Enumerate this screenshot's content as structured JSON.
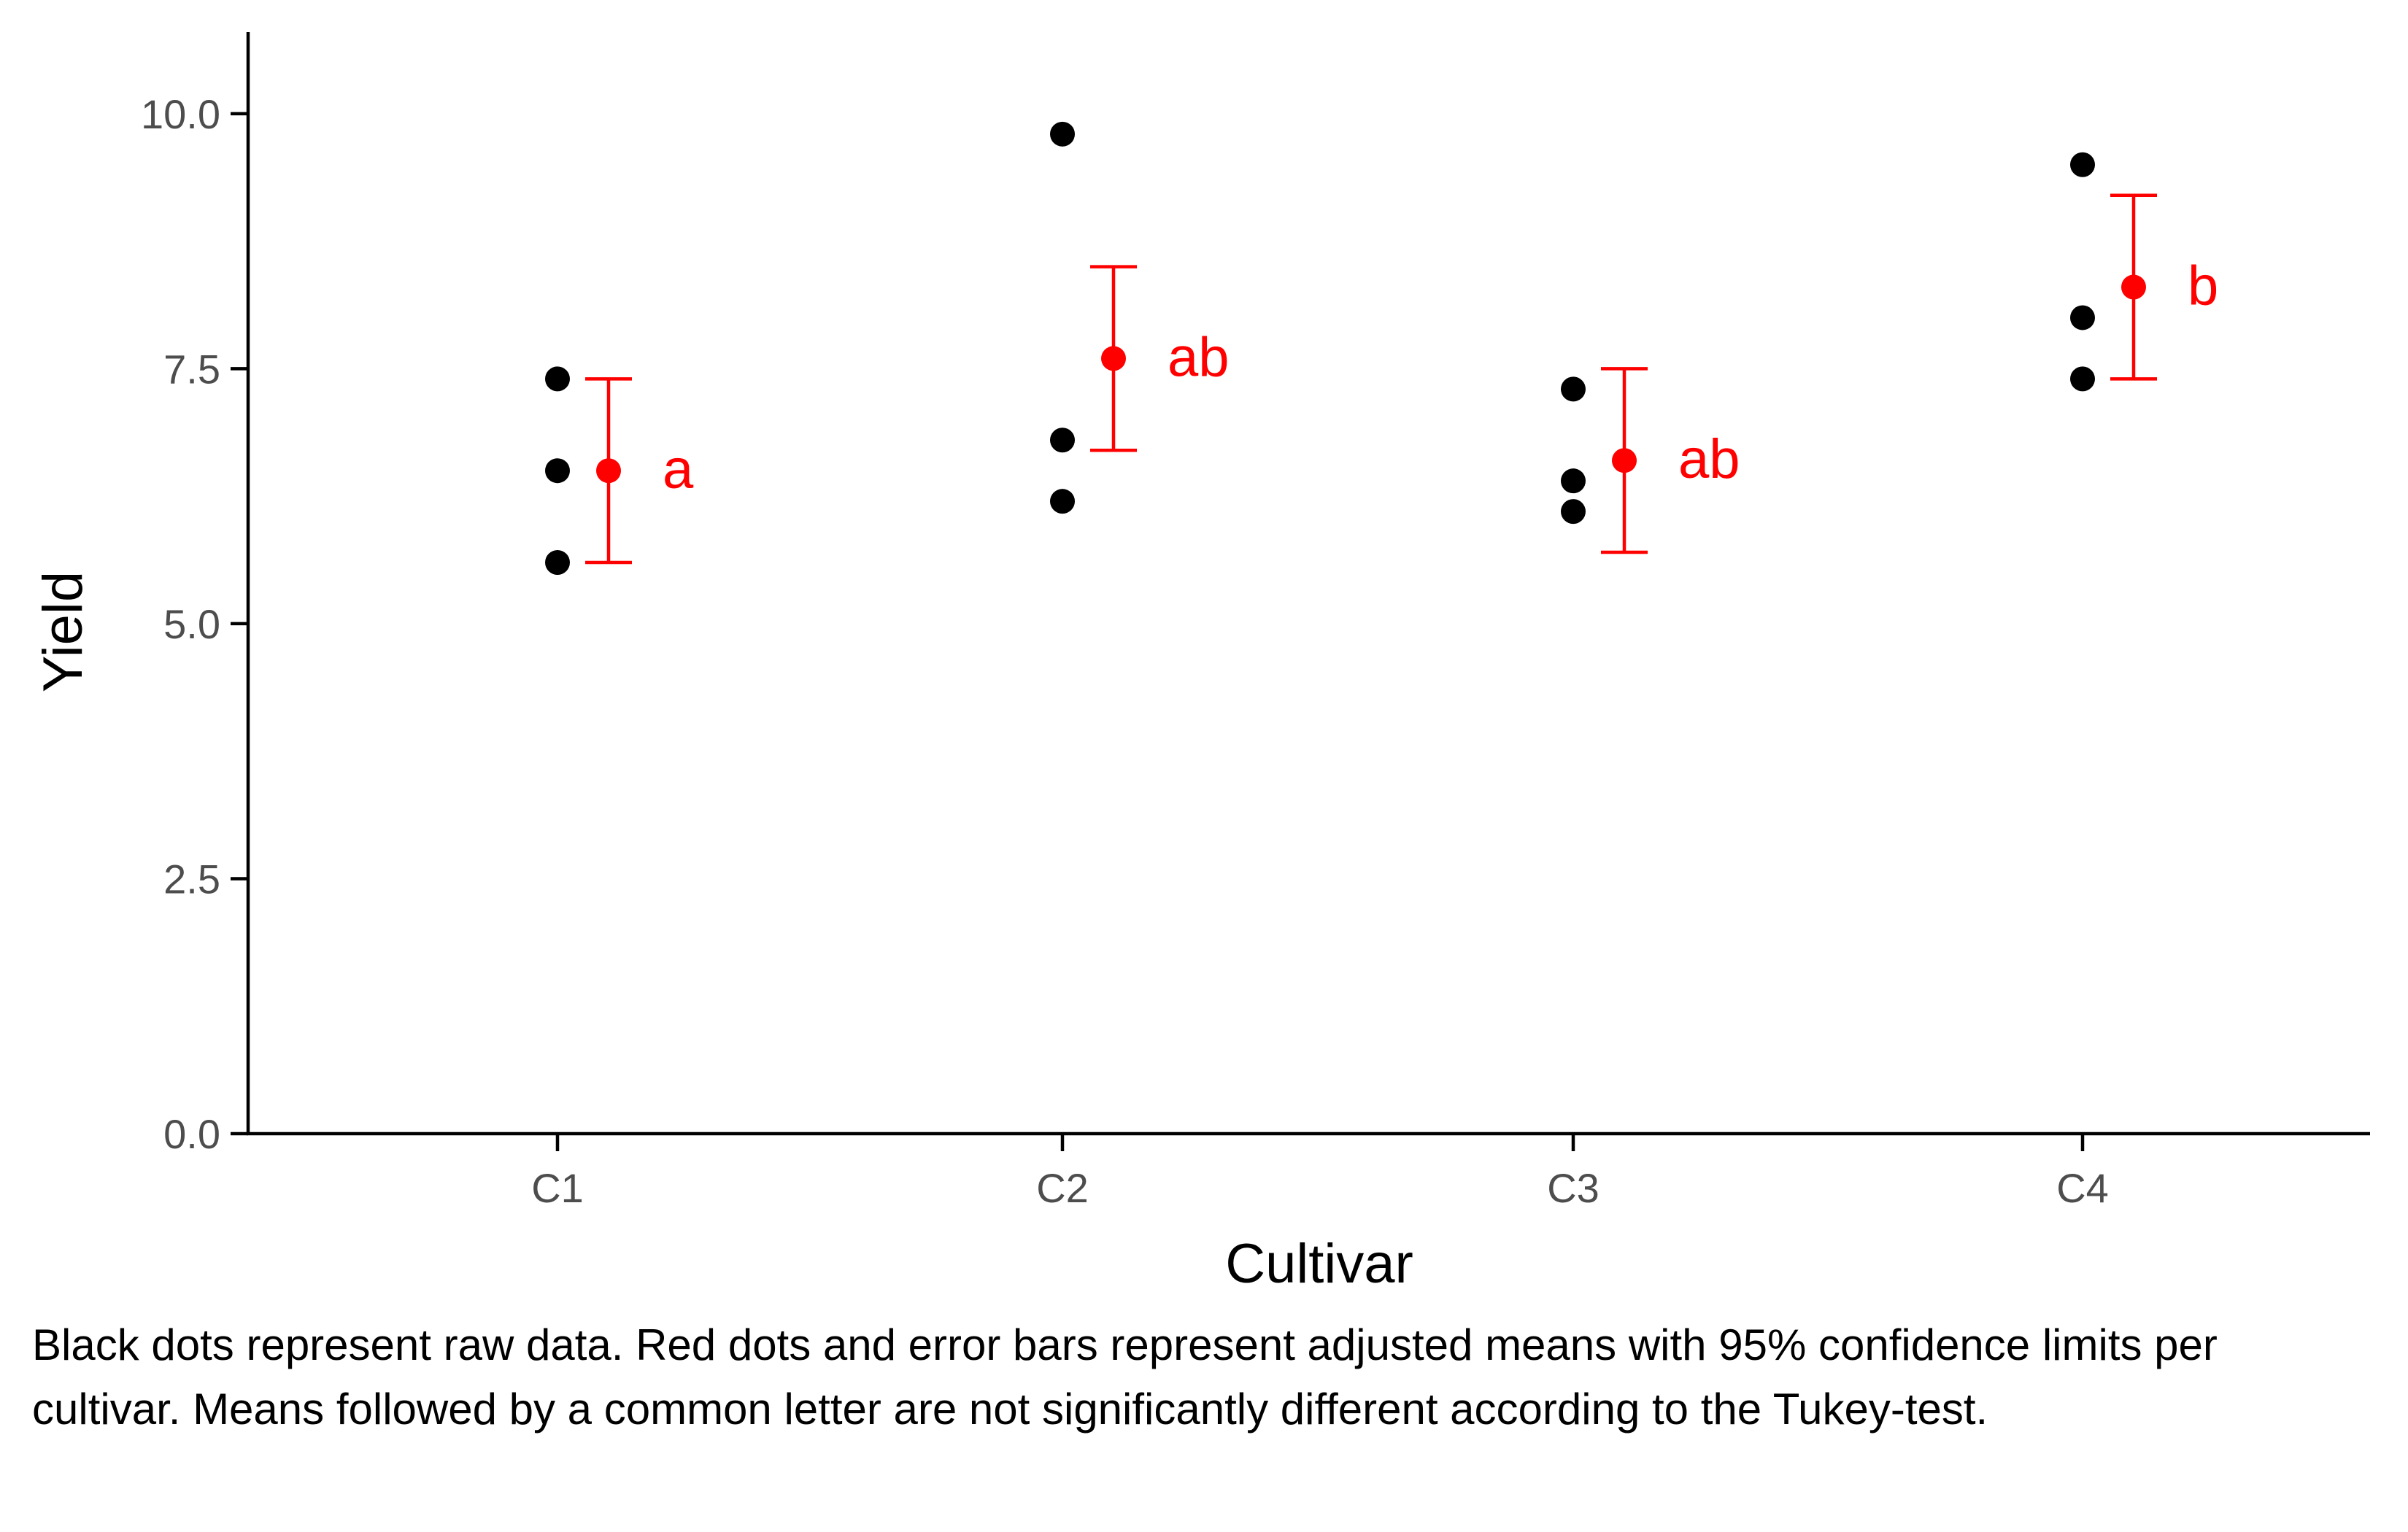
{
  "chart_data": {
    "type": "scatter",
    "xlabel": "Cultivar",
    "ylabel": "Yield",
    "categories": [
      "C1",
      "C2",
      "C3",
      "C4"
    ],
    "ylim": [
      0,
      10.8
    ],
    "yticks": [
      "0.0",
      "2.5",
      "5.0",
      "7.5",
      "10.0"
    ],
    "grid": false,
    "raw_data": [
      {
        "category": "C1",
        "values": [
          7.4,
          6.5,
          5.6
        ]
      },
      {
        "category": "C2",
        "values": [
          9.8,
          6.8,
          6.2
        ]
      },
      {
        "category": "C3",
        "values": [
          7.3,
          6.4,
          6.1
        ]
      },
      {
        "category": "C4",
        "values": [
          9.5,
          8.0,
          7.4
        ]
      }
    ],
    "adjusted_means": [
      {
        "category": "C1",
        "mean": 6.5,
        "lower": 5.6,
        "upper": 7.4,
        "letter": "a"
      },
      {
        "category": "C2",
        "mean": 7.6,
        "lower": 6.7,
        "upper": 8.5,
        "letter": "ab"
      },
      {
        "category": "C3",
        "mean": 6.6,
        "lower": 5.7,
        "upper": 7.5,
        "letter": "ab"
      },
      {
        "category": "C4",
        "mean": 8.3,
        "lower": 7.4,
        "upper": 9.2,
        "letter": "b"
      }
    ],
    "colors": {
      "raw": "#000000",
      "mean": "#ff0000",
      "tick_text": "#4d4d4d"
    }
  },
  "caption": "Black dots represent raw data. Red dots and error bars represent adjusted means with 95% confidence limits per cultivar. Means followed by a common letter are not significantly different according to the Tukey-test."
}
